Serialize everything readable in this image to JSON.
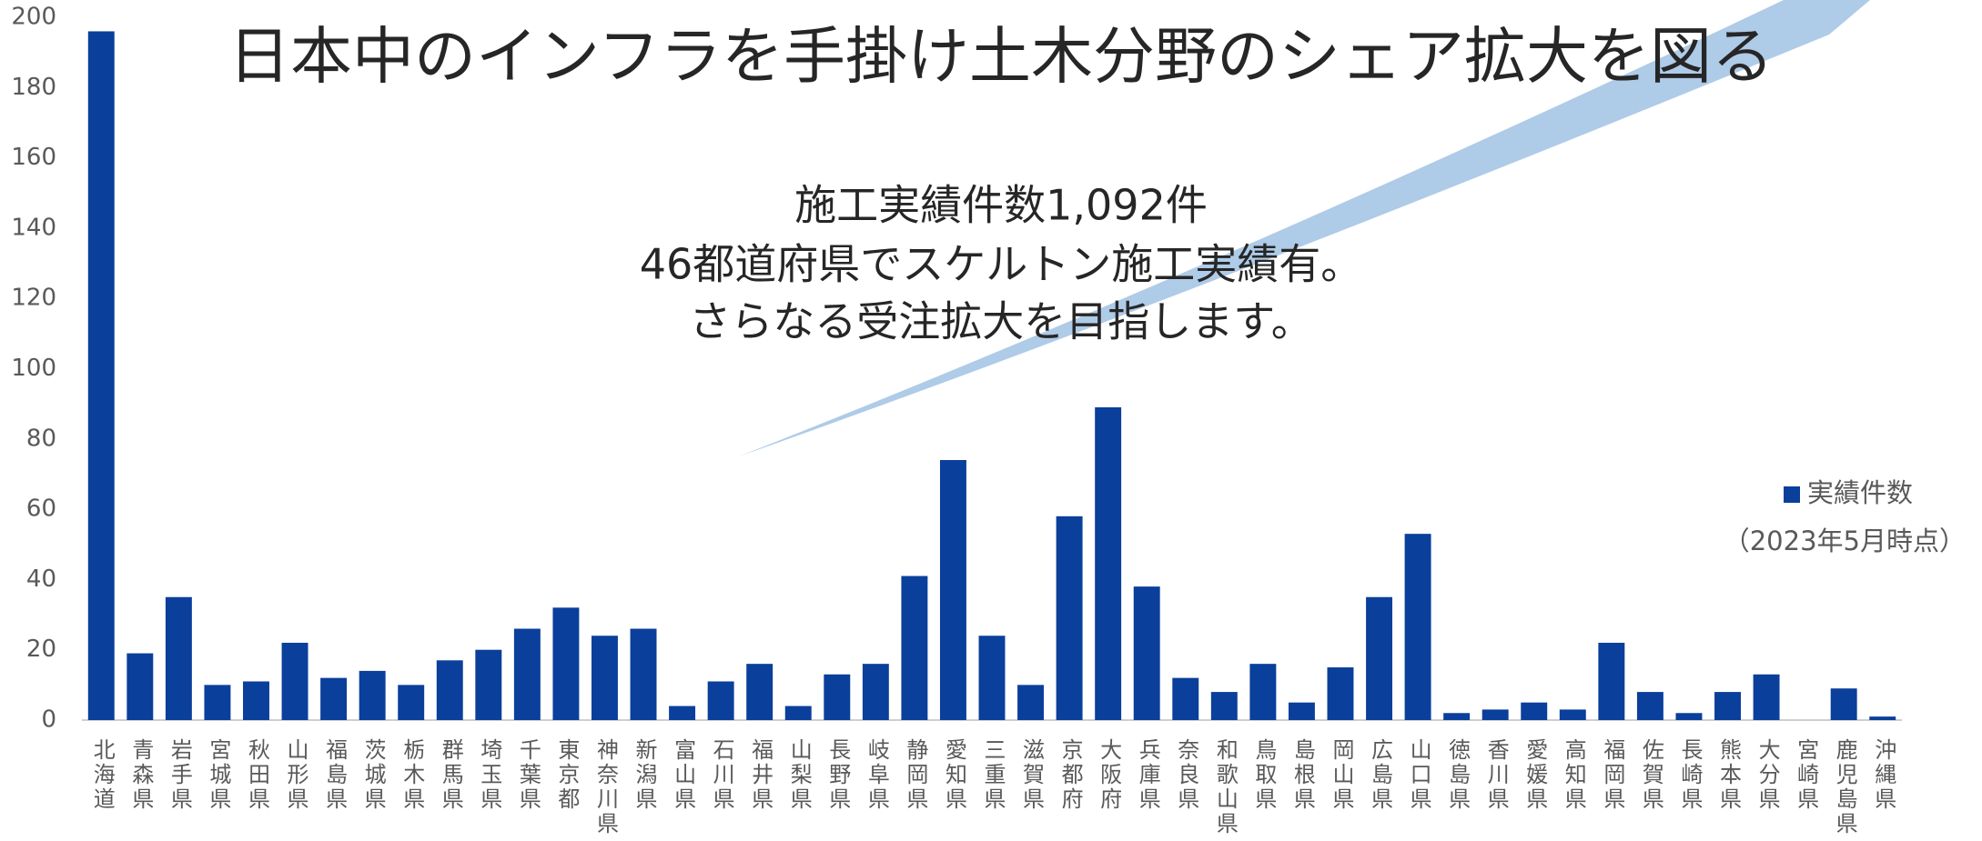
{
  "chart_data": {
    "type": "bar",
    "title": "日本中のインフラを手掛け土木分野のシェア拡大を図る",
    "annotations": [
      "施工実績件数1,092件",
      "46都道府県でスケルトン施工実績有。",
      "さらなる受注拡大を目指します。"
    ],
    "note": "（2023年5月時点）",
    "categories": [
      "北海道",
      "青森県",
      "岩手県",
      "宮城県",
      "秋田県",
      "山形県",
      "福島県",
      "茨城県",
      "栃木県",
      "群馬県",
      "埼玉県",
      "千葉県",
      "東京都",
      "神奈川県",
      "新潟県",
      "富山県",
      "石川県",
      "福井県",
      "山梨県",
      "長野県",
      "岐阜県",
      "静岡県",
      "愛知県",
      "三重県",
      "滋賀県",
      "京都府",
      "大阪府",
      "兵庫県",
      "奈良県",
      "和歌山県",
      "鳥取県",
      "島根県",
      "岡山県",
      "広島県",
      "山口県",
      "徳島県",
      "香川県",
      "愛媛県",
      "高知県",
      "福岡県",
      "佐賀県",
      "長崎県",
      "熊本県",
      "大分県",
      "宮崎県",
      "鹿児島県",
      "沖縄県"
    ],
    "series": [
      {
        "name": "実績件数",
        "color": "#0a3f9b",
        "values": [
          196,
          19,
          35,
          10,
          11,
          22,
          12,
          14,
          10,
          17,
          20,
          26,
          32,
          24,
          26,
          4,
          11,
          16,
          4,
          13,
          16,
          41,
          74,
          24,
          10,
          58,
          89,
          38,
          12,
          8,
          16,
          5,
          15,
          35,
          53,
          2,
          3,
          5,
          3,
          22,
          8,
          2,
          8,
          13,
          0,
          9,
          1
        ]
      }
    ],
    "ylim": [
      0,
      200
    ],
    "yticks": [
      0,
      20,
      40,
      60,
      80,
      100,
      120,
      140,
      160,
      180,
      200
    ],
    "legend": "right"
  }
}
